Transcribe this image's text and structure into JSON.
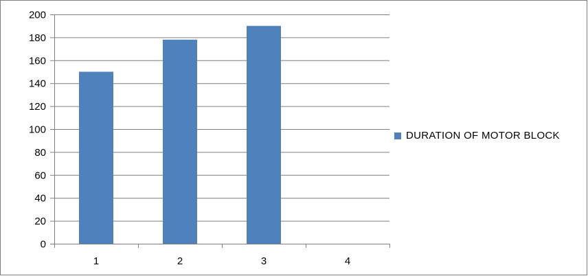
{
  "chart_data": {
    "type": "bar",
    "title": "",
    "xlabel": "",
    "ylabel": "",
    "categories": [
      "1",
      "2",
      "3",
      "4"
    ],
    "series": [
      {
        "name": "DURATION OF MOTOR BLOCK",
        "values": [
          150,
          178,
          190,
          null
        ]
      }
    ],
    "ylim": [
      0,
      200
    ],
    "yticks": [
      "0",
      "20",
      "40",
      "60",
      "80",
      "100",
      "120",
      "140",
      "160",
      "180",
      "200"
    ],
    "grid": true,
    "legend_position": "right",
    "colors": {
      "bar": "#4f81bd",
      "grid": "#7f7f7f",
      "axis": "#7f7f7f"
    }
  }
}
